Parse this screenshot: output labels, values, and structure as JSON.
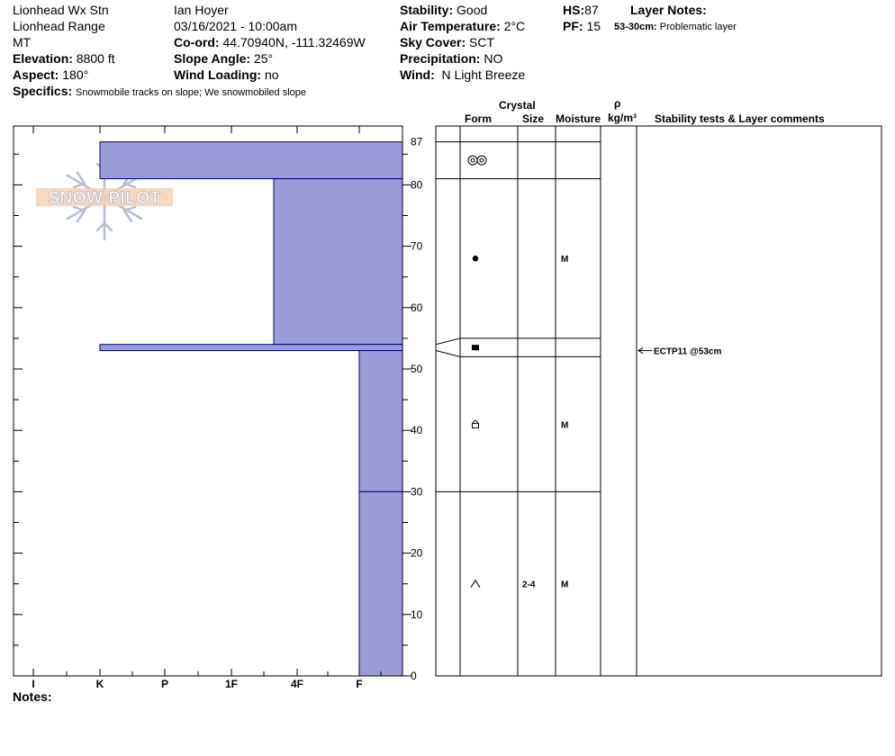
{
  "header": {
    "location": "Lionhead Wx Stn",
    "range": "Lionhead Range",
    "state": "MT",
    "elevation_label": "Elevation:",
    "elevation_value": "8800 ft",
    "aspect_label": "Aspect:",
    "aspect_value": "180°",
    "observer": "Ian Hoyer",
    "datetime": "03/16/2021 - 10:00am",
    "coord_label": "Co-ord:",
    "coord_value": "44.70940N, -111.32469W",
    "slope_label": "Slope Angle:",
    "slope_value": "25°",
    "wind_loading_label": "Wind Loading:",
    "wind_loading_value": "no",
    "stability_label": "Stability:",
    "stability_value": "Good",
    "air_temp_label": "Air Temperature:",
    "air_temp_value": "2°C",
    "sky_label": "Sky Cover:",
    "sky_value": "SCT",
    "precip_label": "Precipitation:",
    "precip_value": "NO",
    "wind_label": "Wind:",
    "wind_value": "N Light Breeze",
    "hs_label": "HS:",
    "hs_value": "87",
    "pf_label": "PF:",
    "pf_value": "15",
    "layer_notes_label": "Layer Notes:",
    "layer_note_range": "53-30cm:",
    "layer_note_text": "Problematic layer",
    "specifics_label": "Specifics:",
    "specifics_value": "Snowmobile tracks on slope; We snowmobiled slope",
    "notes_label": "Notes:"
  },
  "logo_text": "SNOW PILOT",
  "columns": {
    "crystal": "Crystal",
    "form": "Form",
    "size": "Size",
    "moisture": "Moisture",
    "rho": "ρ",
    "density": "kg/m³",
    "tests": "Stability tests & Layer comments"
  },
  "colors": {
    "hardness_fill": "#9c9cd8",
    "line": "#000080"
  },
  "chart_data": {
    "type": "bar",
    "title": "",
    "xlabel": "",
    "ylabel": "",
    "ylim": [
      0,
      87
    ],
    "y_ticks": [
      0,
      10,
      20,
      30,
      40,
      50,
      60,
      70,
      80,
      87
    ],
    "x_categories": [
      "I",
      "K",
      "P",
      "1F",
      "4F",
      "F"
    ],
    "hardness_layers": [
      {
        "top": 87,
        "bottom": 81,
        "hardness": "K"
      },
      {
        "top": 81,
        "bottom": 54,
        "hardness": "1F-4F"
      },
      {
        "top": 54,
        "bottom": 53,
        "hardness": "K"
      },
      {
        "top": 53,
        "bottom": 30,
        "hardness": "F"
      },
      {
        "top": 30,
        "bottom": 0,
        "hardness": "F"
      }
    ],
    "layers": [
      {
        "top": 87,
        "bottom": 81,
        "form": "melt-forms-icon",
        "size": "",
        "moisture": ""
      },
      {
        "top": 81,
        "bottom": 55,
        "form": "decomposing-icon",
        "size": "",
        "moisture": "M"
      },
      {
        "top": 55,
        "bottom": 52,
        "form": "ice-layer-icon",
        "size": "",
        "moisture": ""
      },
      {
        "top": 52,
        "bottom": 30,
        "form": "faceted-rounded-icon",
        "size": "",
        "moisture": "M"
      },
      {
        "top": 30,
        "bottom": 0,
        "form": "depth-hoar-icon",
        "size": "2-4",
        "moisture": "M"
      }
    ],
    "test": {
      "depth": 53,
      "label": "ECTP11 @53cm"
    }
  }
}
